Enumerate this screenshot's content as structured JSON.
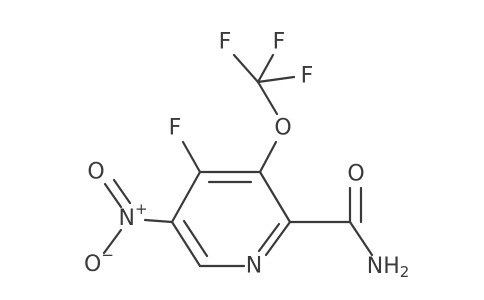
{
  "atoms": [
    {
      "label": "F"
    },
    {
      "label": "O"
    },
    {
      "label": "F"
    },
    {
      "label": "F"
    },
    {
      "label": "F"
    },
    {
      "label": "O"
    },
    {
      "label": "N",
      "sub": "H",
      "sub2": "2"
    },
    {
      "label": "N"
    },
    {
      "label": "N",
      "sup": "+"
    },
    {
      "label": "O"
    },
    {
      "label": "O",
      "sup": "−"
    }
  ]
}
